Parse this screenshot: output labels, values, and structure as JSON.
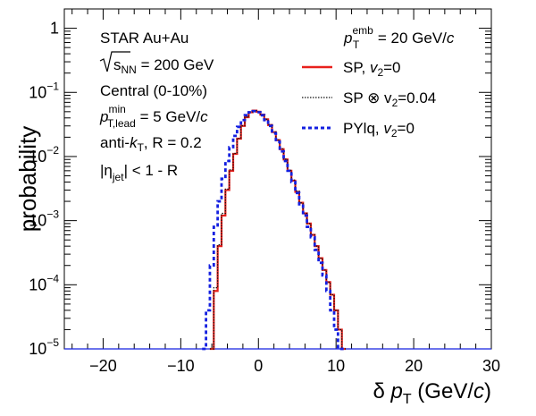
{
  "chart_data": {
    "type": "line",
    "x_scale": "linear",
    "y_scale": "log",
    "xlim": [
      -25,
      30
    ],
    "ylim": [
      1e-05,
      2
    ],
    "x_ticks": [
      -20,
      -10,
      0,
      10,
      20,
      30
    ],
    "x_tick_labels": [
      "−20",
      "−10",
      "0",
      "10",
      "20",
      "30"
    ],
    "y_ticks": [
      {
        "value": 1,
        "base": "1",
        "exp": ""
      },
      {
        "value": 0.1,
        "base": "10",
        "exp": "−1"
      },
      {
        "value": 0.01,
        "base": "10",
        "exp": "−2"
      },
      {
        "value": 0.001,
        "base": "10",
        "exp": "−3"
      },
      {
        "value": 0.0001,
        "base": "10",
        "exp": "−4"
      },
      {
        "value": 1e-05,
        "base": "10",
        "exp": "−5"
      }
    ],
    "xlabel": {
      "main": "δ ",
      "var": "p",
      "sub": "T",
      "unit": " (GeV/",
      "unit_var": "c",
      "close": ")"
    },
    "ylabel": "probability",
    "annotations": {
      "line1": "STAR Au+Au",
      "line2_sqrt": "s",
      "line2_sub": "NN",
      "line2_rest": " = 200 GeV",
      "line3": "Central (0-10%)",
      "line4_var": "p",
      "line4_sup": "min",
      "line4_sub": "T,lead",
      "line4_rest": " = 5 GeV/",
      "line4_unit": "c",
      "line5_a": "anti-",
      "line5_k": "k",
      "line5_ksub": "T",
      "line5_rest": ", R = 0.2",
      "line6_a": "|η",
      "line6_sub": "jet",
      "line6_rest": "| < 1 - R"
    },
    "legend": {
      "header_var": "p",
      "header_sup": "emb",
      "header_sub": "T",
      "header_rest": " = 20 GeV/",
      "header_unit": "c",
      "position": "top-right"
    },
    "series": [
      {
        "name": "SP, v2=0",
        "label_a": "SP, ",
        "label_var": "v",
        "label_sub": "2",
        "label_rest": "=0",
        "color": "#e8201c",
        "style": "solid",
        "x": [
          -6,
          -5.5,
          -5,
          -4.5,
          -4,
          -3.5,
          -3,
          -2.5,
          -2,
          -1.5,
          -1,
          -0.5,
          0,
          0.5,
          1,
          1.5,
          2,
          2.5,
          3,
          3.5,
          4,
          4.5,
          5,
          5.5,
          6,
          6.5,
          7,
          7.5,
          8,
          8.5,
          9,
          9.5,
          10,
          10.5,
          11
        ],
        "y": [
          1e-05,
          8e-05,
          0.0004,
          0.0012,
          0.003,
          0.006,
          0.011,
          0.019,
          0.03,
          0.041,
          0.049,
          0.052,
          0.05,
          0.045,
          0.038,
          0.031,
          0.024,
          0.018,
          0.013,
          0.009,
          0.006,
          0.0042,
          0.0028,
          0.0019,
          0.0013,
          0.0009,
          0.0006,
          0.0004,
          0.00026,
          0.00017,
          0.00011,
          7e-05,
          4e-05,
          2e-05,
          1e-05
        ]
      },
      {
        "name": "SP ⊗ v2=0.04",
        "label_a": "SP ⊗ v",
        "label_sub": "2",
        "label_rest": "=0.04",
        "color": "#111111",
        "style": "dotted",
        "x": [
          -6,
          -5.5,
          -5,
          -4.5,
          -4,
          -3.5,
          -3,
          -2.5,
          -2,
          -1.5,
          -1,
          -0.5,
          0,
          0.5,
          1,
          1.5,
          2,
          2.5,
          3,
          3.5,
          4,
          4.5,
          5,
          5.5,
          6,
          6.5,
          7,
          7.5,
          8,
          8.5,
          9,
          9.5,
          10,
          10.5,
          11
        ],
        "y": [
          1e-05,
          9e-05,
          0.00042,
          0.0013,
          0.0031,
          0.0062,
          0.0112,
          0.0192,
          0.0302,
          0.0412,
          0.0492,
          0.0522,
          0.0502,
          0.0452,
          0.0382,
          0.0312,
          0.0242,
          0.0182,
          0.0132,
          0.0091,
          0.0061,
          0.0043,
          0.0029,
          0.0019,
          0.0013,
          0.0009,
          0.0006,
          0.0004,
          0.00026,
          0.00017,
          0.00011,
          7e-05,
          4e-05,
          2e-05,
          1e-05
        ]
      },
      {
        "name": "PYlq, v2=0",
        "label_a": "PYlq, ",
        "label_var": "v",
        "label_sub": "2",
        "label_rest": "=0",
        "color": "#1420e0",
        "style": "dashed",
        "x": [
          -7,
          -6.5,
          -6,
          -5.5,
          -5,
          -4.5,
          -4,
          -3.5,
          -3,
          -2.5,
          -2,
          -1.5,
          -1,
          -0.5,
          0,
          0.5,
          1,
          1.5,
          2,
          2.5,
          3,
          3.5,
          4,
          4.5,
          5,
          5.5,
          6,
          6.5,
          7,
          7.5,
          8,
          8.5,
          9,
          9.5,
          10,
          10.5,
          11
        ],
        "y": [
          1e-05,
          4e-05,
          0.0002,
          0.0008,
          0.002,
          0.0045,
          0.0085,
          0.014,
          0.021,
          0.029,
          0.037,
          0.044,
          0.049,
          0.051,
          0.049,
          0.044,
          0.037,
          0.03,
          0.023,
          0.017,
          0.012,
          0.0085,
          0.006,
          0.004,
          0.0027,
          0.0018,
          0.0012,
          0.0008,
          0.00055,
          0.00035,
          0.00022,
          0.00014,
          8e-05,
          4e-05,
          2e-05,
          1e-05,
          1e-05
        ]
      }
    ],
    "grid": false
  }
}
